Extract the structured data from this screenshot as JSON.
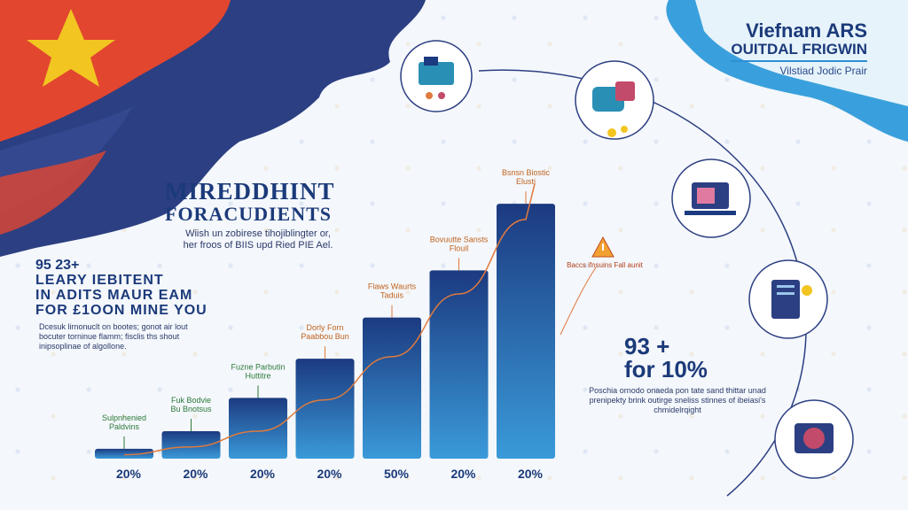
{
  "brand": {
    "line1": "Viefnam ARS",
    "line2": "OUITDAL FRIGWIN",
    "line3": "Vilstiad Jodic Prair"
  },
  "title": {
    "line1": "MIREDDHINT",
    "line2": "FORACUDIENTS",
    "subtitle_line1": "Wiish un zobirese tihojiblingter or,",
    "subtitle_line2": "her froos of BIIS upd Ried PIE Ael."
  },
  "left_stat": {
    "line1": "95 23+",
    "line2": "LEARY IEBITENT",
    "line3": "IN ADITS MAUR EAM",
    "line4": "FOR £1OON MINE YOU",
    "text": "Dcesuk lirnonuclt on bootes; gonot air lout bocuter torninue flamm; fisclis ths shout inipsoplinae of algollone."
  },
  "right_stat": {
    "line1": "93 +",
    "line2": "for 10%",
    "text": "Poschia ornodo onaeda pon tate sand thittar unad prenipekty brink outirge sneliss stinnes of ibeiasi's chmidelrqight"
  },
  "warning_text": "Baccs ifnsuins Fall aunit",
  "colors": {
    "bar_top": "#1c3a80",
    "bar_bottom": "#3a9ad9",
    "trend": "#e07a3c",
    "flag_red": "#e2462f",
    "flag_blue": "#2c3f82",
    "flag_star": "#f2c521"
  },
  "chart_data": {
    "type": "bar",
    "categories": [
      "20%",
      "20%",
      "20%",
      "20%",
      "50%",
      "20%",
      "20%"
    ],
    "values": [
      5,
      14,
      31,
      51,
      72,
      96,
      130
    ],
    "ylim": [
      0,
      140
    ],
    "bar_labels": [
      "Sulpnhenied Paldvins",
      "Fuk Bodvie Bu Bnotsus",
      "Fuzne Parbutin Huttitre",
      "Dorly Forn Paabbou Bun",
      "Flaws Waurts Taduis",
      "Bovuutte Sansts Flouil",
      "Bsnsn Biostic Elusti"
    ],
    "trend": {
      "type": "line",
      "values": [
        2,
        6,
        14,
        30,
        52,
        84,
        122
      ]
    }
  },
  "icons": [
    "monitor-desk-icon",
    "coins-treasure-icon",
    "laptop-screen-icon",
    "book-coins-icon",
    "gift-box-icon",
    "warning-icon"
  ]
}
